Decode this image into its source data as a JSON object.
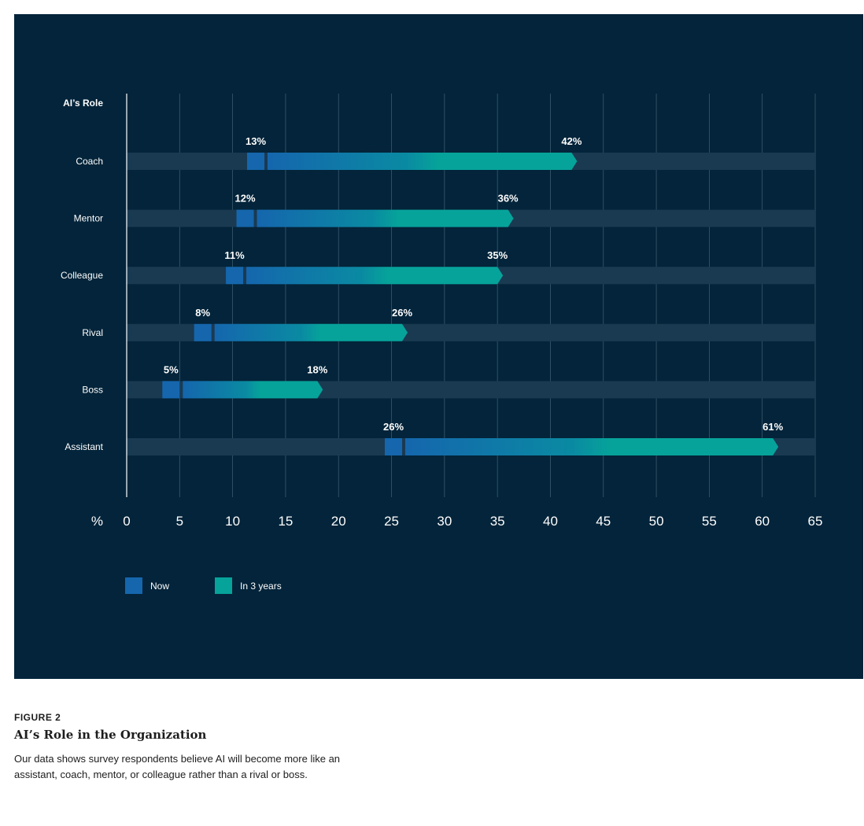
{
  "caption": {
    "figure_label": "FIGURE 2",
    "title": "AI’s Role in the Organization",
    "description": "Our data shows survey respondents believe AI will become more like an assistant, coach, mentor, or colleague rather than a rival or boss."
  },
  "colors": {
    "background": "#03243a",
    "track": "#1a3a52",
    "now": "#1566ad",
    "future": "#06a39a",
    "gridline": "#3b5a70"
  },
  "chart_data": {
    "type": "bar",
    "title": "",
    "ylabel": "AI’s Role",
    "xlabel": "%",
    "xlim": [
      0,
      65
    ],
    "x_ticks": [
      0,
      5,
      10,
      15,
      20,
      25,
      30,
      35,
      40,
      45,
      50,
      55,
      60,
      65
    ],
    "categories": [
      "Coach",
      "Mentor",
      "Colleague",
      "Rival",
      "Boss",
      "Assistant"
    ],
    "series": [
      {
        "name": "Now",
        "values": [
          13,
          12,
          11,
          8,
          5,
          26
        ],
        "labels": [
          "13%",
          "12%",
          "11%",
          "8%",
          "5%",
          "26%"
        ]
      },
      {
        "name": "In 3 years",
        "values": [
          42,
          36,
          35,
          26,
          18,
          61
        ],
        "labels": [
          "42%",
          "36%",
          "35%",
          "26%",
          "18%",
          "61%"
        ]
      }
    ],
    "legend": {
      "position": "bottom-left",
      "entries": [
        "Now",
        "In 3 years"
      ]
    },
    "grid": true
  }
}
